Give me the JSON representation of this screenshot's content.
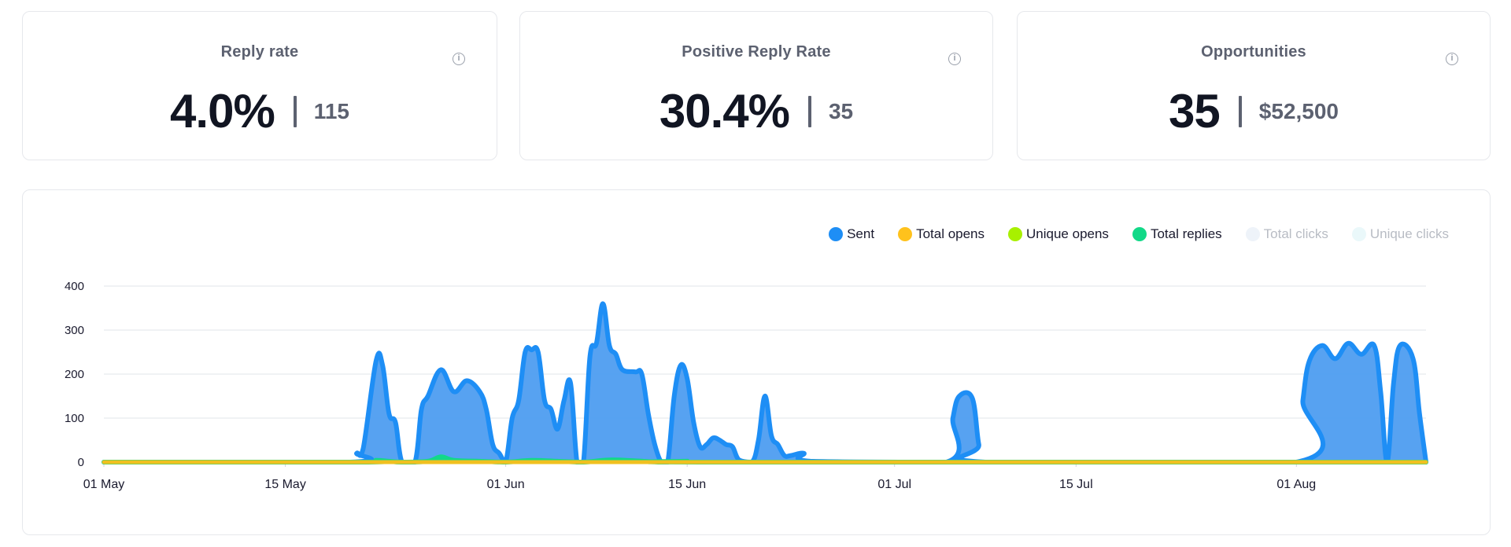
{
  "cards": [
    {
      "title": "Reply rate",
      "value": "4.0%",
      "sub": "115"
    },
    {
      "title": "Positive Reply Rate",
      "value": "30.4%",
      "sub": "35"
    },
    {
      "title": "Opportunities",
      "value": "35",
      "sub": "$52,500"
    }
  ],
  "info_icon": {
    "glyph": "i",
    "icon": "info-icon"
  },
  "legend": [
    {
      "label": "Sent",
      "color": "#1e8ef5",
      "muted": false
    },
    {
      "label": "Total opens",
      "color": "#ffc21c",
      "muted": false
    },
    {
      "label": "Unique opens",
      "color": "#a8f000",
      "muted": false
    },
    {
      "label": "Total replies",
      "color": "#12d988",
      "muted": false
    },
    {
      "label": "Total clicks",
      "color": "#eef3f9",
      "muted": true
    },
    {
      "label": "Unique clicks",
      "color": "#eaf8fa",
      "muted": true
    }
  ],
  "chart_data": {
    "type": "area",
    "x_start": "2024-05-01",
    "x_end": "2024-08-11",
    "xticks": [
      {
        "date": "2024-05-01",
        "label": "01 May"
      },
      {
        "date": "2024-05-15",
        "label": "15 May"
      },
      {
        "date": "2024-06-01",
        "label": "01 Jun"
      },
      {
        "date": "2024-06-15",
        "label": "15 Jun"
      },
      {
        "date": "2024-07-01",
        "label": "01 Jul"
      },
      {
        "date": "2024-07-15",
        "label": "15 Jul"
      },
      {
        "date": "2024-08-01",
        "label": "01 Aug"
      }
    ],
    "yticks": [
      0,
      100,
      200,
      300,
      400
    ],
    "ylim": [
      0,
      400
    ],
    "grid": true,
    "legend_position": "top-right",
    "series": [
      {
        "name": "Sent",
        "color": "#1e8ef5",
        "fill": "#4e9df0",
        "points": [
          [
            "2024-05-01",
            0
          ],
          [
            "2024-05-20",
            0
          ],
          [
            "2024-05-20T12:00",
            20
          ],
          [
            "2024-05-21",
            30
          ],
          [
            "2024-05-22",
            230
          ],
          [
            "2024-05-22T12:00",
            220
          ],
          [
            "2024-05-23",
            110
          ],
          [
            "2024-05-23T12:00",
            90
          ],
          [
            "2024-05-24",
            0
          ],
          [
            "2024-05-25",
            0
          ],
          [
            "2024-05-25T12:00",
            120
          ],
          [
            "2024-05-26",
            150
          ],
          [
            "2024-05-27",
            210
          ],
          [
            "2024-05-28",
            160
          ],
          [
            "2024-05-29",
            185
          ],
          [
            "2024-05-30",
            160
          ],
          [
            "2024-05-30T12:00",
            120
          ],
          [
            "2024-05-31",
            40
          ],
          [
            "2024-05-31T12:00",
            20
          ],
          [
            "2024-06-01",
            0
          ],
          [
            "2024-06-01T12:00",
            100
          ],
          [
            "2024-06-02",
            140
          ],
          [
            "2024-06-02T12:00",
            250
          ],
          [
            "2024-06-03",
            255
          ],
          [
            "2024-06-03T12:00",
            250
          ],
          [
            "2024-06-04",
            140
          ],
          [
            "2024-06-04T12:00",
            120
          ],
          [
            "2024-06-05",
            75
          ],
          [
            "2024-06-05T12:00",
            140
          ],
          [
            "2024-06-06",
            180
          ],
          [
            "2024-06-06T12:00",
            0
          ],
          [
            "2024-06-07",
            0
          ],
          [
            "2024-06-07T12:00",
            240
          ],
          [
            "2024-06-08",
            270
          ],
          [
            "2024-06-08T12:00",
            360
          ],
          [
            "2024-06-09",
            265
          ],
          [
            "2024-06-09T12:00",
            245
          ],
          [
            "2024-06-10",
            210
          ],
          [
            "2024-06-11",
            205
          ],
          [
            "2024-06-11T12:00",
            200
          ],
          [
            "2024-06-12",
            110
          ],
          [
            "2024-06-12T12:00",
            40
          ],
          [
            "2024-06-13",
            0
          ],
          [
            "2024-06-13T12:00",
            0
          ],
          [
            "2024-06-14",
            150
          ],
          [
            "2024-06-14T12:00",
            220
          ],
          [
            "2024-06-15",
            190
          ],
          [
            "2024-06-15T12:00",
            90
          ],
          [
            "2024-06-16",
            35
          ],
          [
            "2024-06-16T12:00",
            40
          ],
          [
            "2024-06-17",
            55
          ],
          [
            "2024-06-17T12:00",
            50
          ],
          [
            "2024-06-18",
            40
          ],
          [
            "2024-06-18T12:00",
            35
          ],
          [
            "2024-06-19",
            5
          ],
          [
            "2024-06-20",
            0
          ],
          [
            "2024-06-20T12:00",
            50
          ],
          [
            "2024-06-21",
            150
          ],
          [
            "2024-06-21T12:00",
            60
          ],
          [
            "2024-06-22",
            40
          ],
          [
            "2024-06-22T12:00",
            15
          ],
          [
            "2024-06-23",
            15
          ],
          [
            "2024-06-24",
            20
          ],
          [
            "2024-06-24T12:00",
            2
          ],
          [
            "2024-07-05",
            0
          ],
          [
            "2024-07-05T12:00",
            100
          ],
          [
            "2024-07-06",
            150
          ],
          [
            "2024-07-07",
            145
          ],
          [
            "2024-07-07T12:00",
            40
          ],
          [
            "2024-07-08",
            0
          ],
          [
            "2024-08-01",
            0
          ],
          [
            "2024-08-01T12:00",
            140
          ],
          [
            "2024-08-02",
            230
          ],
          [
            "2024-08-03",
            265
          ],
          [
            "2024-08-04",
            235
          ],
          [
            "2024-08-05",
            270
          ],
          [
            "2024-08-06",
            245
          ],
          [
            "2024-08-07",
            265
          ],
          [
            "2024-08-07T12:00",
            160
          ],
          [
            "2024-08-08",
            0
          ],
          [
            "2024-08-08T12:00",
            180
          ],
          [
            "2024-08-09",
            265
          ],
          [
            "2024-08-10",
            235
          ],
          [
            "2024-08-10T12:00",
            110
          ],
          [
            "2024-08-11",
            0
          ]
        ]
      },
      {
        "name": "Total replies",
        "color": "#12d988",
        "fill": "#12d988",
        "points": [
          [
            "2024-05-01",
            0
          ],
          [
            "2024-05-21",
            0
          ],
          [
            "2024-05-22",
            4
          ],
          [
            "2024-05-23",
            2
          ],
          [
            "2024-05-24",
            0
          ],
          [
            "2024-05-26",
            2
          ],
          [
            "2024-05-27",
            12
          ],
          [
            "2024-05-28",
            4
          ],
          [
            "2024-05-30",
            2
          ],
          [
            "2024-06-01",
            0
          ],
          [
            "2024-06-03",
            4
          ],
          [
            "2024-06-05",
            2
          ],
          [
            "2024-06-07",
            0
          ],
          [
            "2024-06-09",
            5
          ],
          [
            "2024-06-11",
            3
          ],
          [
            "2024-06-13",
            0
          ],
          [
            "2024-06-15",
            2
          ],
          [
            "2024-06-17",
            0
          ],
          [
            "2024-08-11",
            0
          ]
        ]
      },
      {
        "name": "Total opens",
        "color": "#f0c020",
        "fill": "none",
        "points": [
          [
            "2024-05-01",
            0
          ],
          [
            "2024-08-11",
            0
          ]
        ]
      }
    ]
  }
}
